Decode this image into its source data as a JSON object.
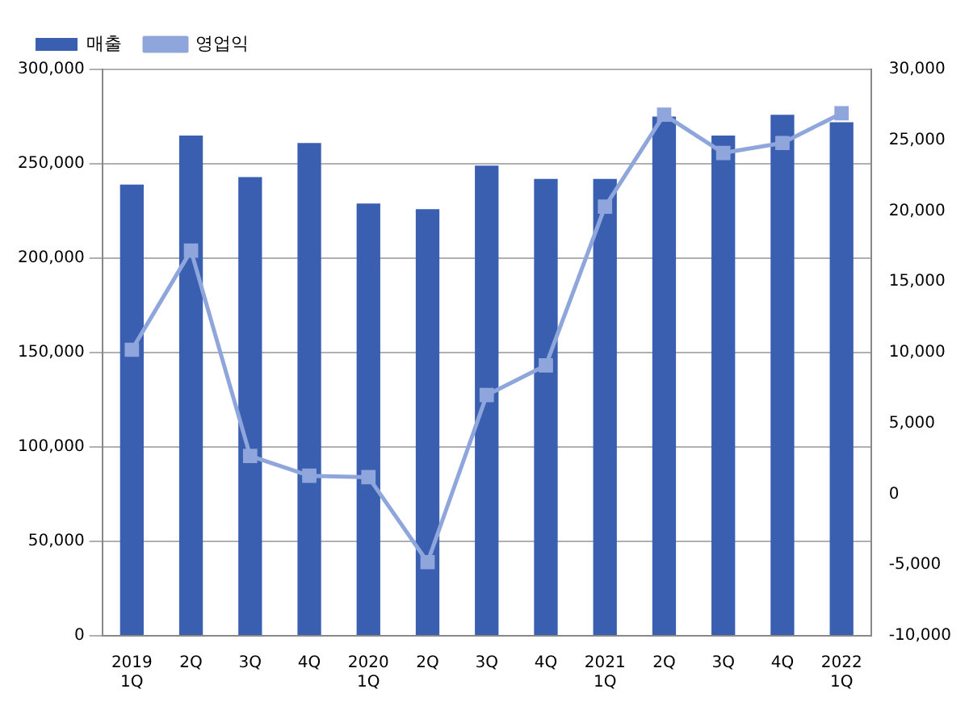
{
  "chart_data": {
    "type": "bar",
    "categories": [
      "2019\n1Q",
      "2Q",
      "3Q",
      "4Q",
      "2020\n1Q",
      "2Q",
      "3Q",
      "4Q",
      "2021\n1Q",
      "2Q",
      "3Q",
      "4Q",
      "2022\n1Q"
    ],
    "series": [
      {
        "name": "매출",
        "color": "#3a5fb0",
        "values": [
          239000,
          265000,
          243000,
          261000,
          229000,
          226000,
          249000,
          242000,
          242000,
          275000,
          265000,
          276000,
          272000
        ]
      },
      {
        "name": "영업익",
        "type": "line",
        "axis": "y2",
        "color": "#8fa6dc",
        "marker": "square",
        "values": [
          10200,
          17200,
          2700,
          1300,
          1200,
          -4800,
          7000,
          9100,
          20300,
          26800,
          24100,
          24800,
          26900
        ]
      }
    ],
    "ylim": [
      0,
      300000
    ],
    "yticks": [
      0,
      {
        "value": 50000,
        "label": "50,000"
      },
      {
        "value": 100000,
        "label": "100,000"
      },
      {
        "value": 150000,
        "label": "150,000"
      },
      {
        "value": 200000,
        "label": "200,000"
      },
      {
        "value": 250000,
        "label": "250,000"
      },
      {
        "value": 300000,
        "label": "300,000"
      }
    ],
    "y2lim": [
      -10000,
      30000
    ],
    "y2ticks": [
      {
        "value": -10000,
        "label": "-10,000"
      },
      {
        "value": -5000,
        "label": "-5,000"
      },
      0,
      {
        "value": 5000,
        "label": "5,000"
      },
      {
        "value": 10000,
        "label": "10,000"
      },
      {
        "value": 15000,
        "label": "15,000"
      },
      {
        "value": 20000,
        "label": "20,000"
      },
      {
        "value": 25000,
        "label": "25,000"
      },
      {
        "value": 30000,
        "label": "30,000"
      }
    ],
    "grid": "y",
    "legend": "top left"
  }
}
